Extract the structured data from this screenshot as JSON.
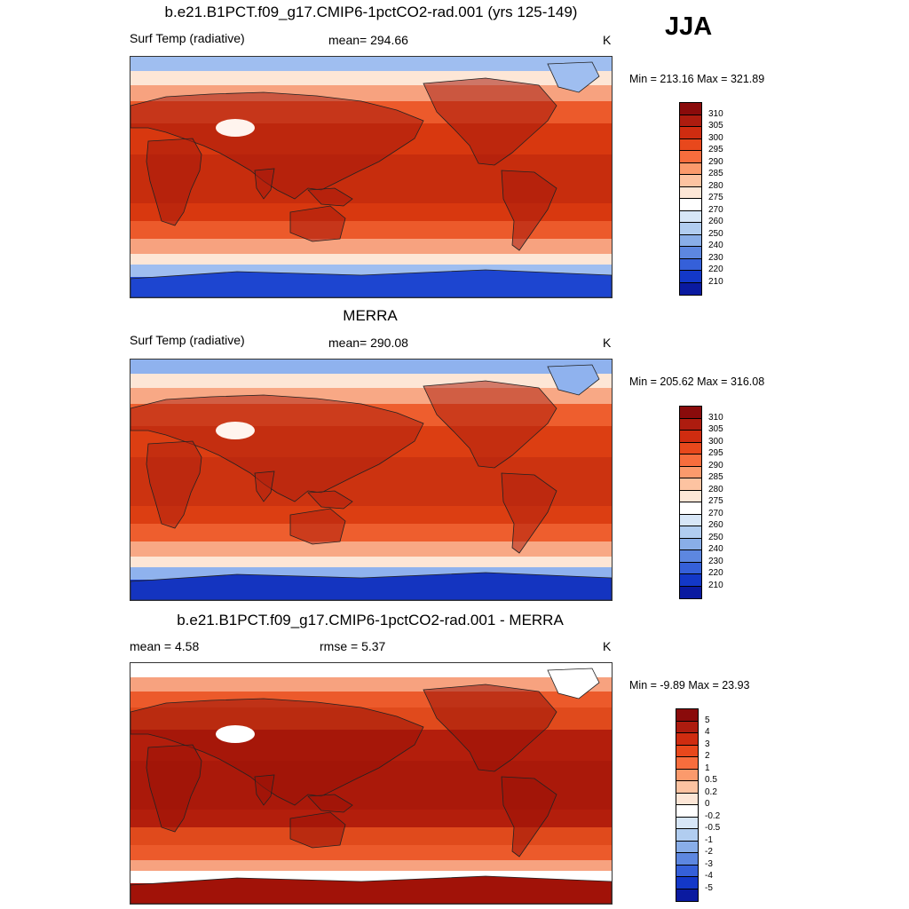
{
  "season": "JJA",
  "panels": [
    {
      "title": "b.e21.B1PCT.f09_g17.CMIP6-1pctCO2-rad.001 (yrs 125-149)",
      "left_label": "Surf Temp (radiative)",
      "center_label": "mean= 294.66",
      "units": "K",
      "minmax": "Min = 213.16 Max = 321.89",
      "colorbar": {
        "labels": [
          "310",
          "305",
          "300",
          "295",
          "290",
          "285",
          "280",
          "275",
          "270",
          "260",
          "250",
          "240",
          "230",
          "220",
          "210"
        ],
        "colors": [
          "#8a0b0b",
          "#ad1c0f",
          "#cf2c10",
          "#e8481c",
          "#f76d3d",
          "#fb9a6c",
          "#fdc3a1",
          "#fde6d6",
          "#ffffff",
          "#d7e6f7",
          "#b1cdf0",
          "#89aee8",
          "#5d87e0",
          "#3560d9",
          "#1338c8",
          "#0a1aa0"
        ]
      },
      "map_palette": {
        "polar": "#1d45d0",
        "cold": "#9fbef0",
        "cool": "#fde6d6",
        "mild": "#f7a27f",
        "warm": "#ec5a2b",
        "hot": "#d8380f",
        "land_hot": "#a81a0c",
        "plateau": "#fff4ee"
      }
    },
    {
      "title": "MERRA",
      "left_label": "Surf Temp (radiative)",
      "center_label": "mean= 290.08",
      "units": "K",
      "minmax": "Min = 205.62 Max = 316.08",
      "colorbar": {
        "labels": [
          "310",
          "305",
          "300",
          "295",
          "290",
          "285",
          "280",
          "275",
          "270",
          "260",
          "250",
          "240",
          "230",
          "220",
          "210"
        ],
        "colors": [
          "#8a0b0b",
          "#ad1c0f",
          "#cf2c10",
          "#e8481c",
          "#f76d3d",
          "#fb9a6c",
          "#fdc3a1",
          "#fde6d6",
          "#ffffff",
          "#d7e6f7",
          "#b1cdf0",
          "#89aee8",
          "#5d87e0",
          "#3560d9",
          "#1338c8",
          "#0a1aa0"
        ]
      },
      "map_palette": {
        "polar": "#1434c0",
        "cold": "#8fb2ee",
        "cool": "#fde6d6",
        "mild": "#f8a885",
        "warm": "#ee5e2e",
        "hot": "#dc3e12",
        "land_hot": "#b0200e",
        "plateau": "#fff4ee"
      }
    },
    {
      "title": "b.e21.B1PCT.f09_g17.CMIP6-1pctCO2-rad.001 - MERRA",
      "left_label": "mean =   4.58",
      "center_label": "rmse =   5.37",
      "units": "K",
      "minmax": "Min =  -9.89 Max =  23.93",
      "colorbar": {
        "labels": [
          "5",
          "4",
          "3",
          "2",
          "1",
          "0.5",
          "0.2",
          "0",
          "-0.2",
          "-0.5",
          "-1",
          "-2",
          "-3",
          "-4",
          "-5"
        ],
        "colors": [
          "#8a0b0b",
          "#ad1c0f",
          "#cf2c10",
          "#e8481c",
          "#f76d3d",
          "#fb9a6c",
          "#fdc3a1",
          "#fde6d6",
          "#ffffff",
          "#d7e6f7",
          "#b1cdf0",
          "#89aee8",
          "#5d87e0",
          "#3560d9",
          "#1338c8",
          "#0a1aa0"
        ]
      },
      "map_palette": {
        "polar": "#a11208",
        "cold": "#ffffff",
        "cool": "#f7a27f",
        "mild": "#ec5a2b",
        "warm": "#e04a1c",
        "hot": "#b31e0c",
        "land_hot": "#9a1208",
        "plateau": "#ffffff"
      }
    }
  ]
}
